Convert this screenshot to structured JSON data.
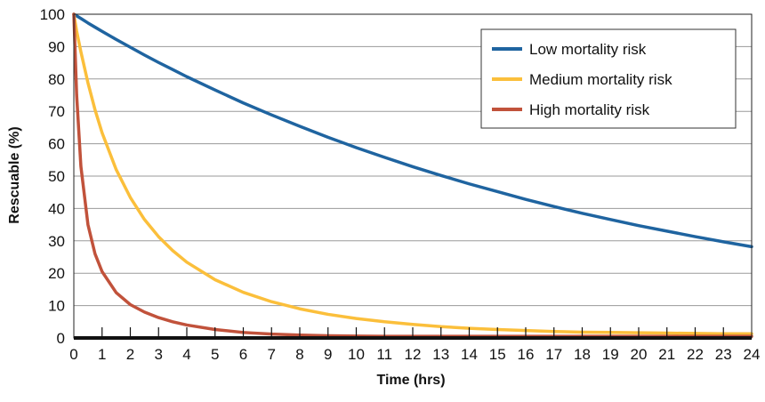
{
  "chart_data": {
    "type": "line",
    "title": "",
    "xlabel": "Time (hrs)",
    "ylabel": "Rescuable (%)",
    "xlim": [
      0,
      24
    ],
    "ylim": [
      0,
      100
    ],
    "x_ticks": [
      0,
      1,
      2,
      3,
      4,
      5,
      6,
      7,
      8,
      9,
      10,
      11,
      12,
      13,
      14,
      15,
      16,
      17,
      18,
      19,
      20,
      21,
      22,
      23,
      24
    ],
    "y_ticks": [
      0,
      10,
      20,
      30,
      40,
      50,
      60,
      70,
      80,
      90,
      100
    ],
    "grid": "horizontal",
    "legend_position": "top-right",
    "x": [
      0,
      0.1,
      0.25,
      0.5,
      0.75,
      1,
      1.5,
      2,
      2.5,
      3,
      3.5,
      4,
      5,
      6,
      7,
      8,
      9,
      10,
      11,
      12,
      13,
      14,
      15,
      16,
      17,
      18,
      19,
      20,
      21,
      22,
      23,
      24
    ],
    "series": [
      {
        "name": "Low mortality risk",
        "color": "#1f64a0",
        "values": [
          100,
          99.5,
          98.7,
          97.3,
          96.0,
          94.7,
          92.2,
          89.8,
          87.4,
          85.1,
          82.9,
          80.7,
          76.6,
          72.6,
          68.9,
          65.4,
          62.0,
          58.8,
          55.8,
          52.9,
          50.2,
          47.6,
          45.2,
          42.8,
          40.6,
          38.5,
          36.6,
          34.7,
          33.0,
          31.3,
          29.7,
          28.2
        ]
      },
      {
        "name": "Medium mortality risk",
        "color": "#fbbf3b",
        "values": [
          100,
          94.8,
          88.4,
          78.8,
          70.5,
          63.4,
          52.0,
          43.4,
          36.6,
          31.3,
          27.0,
          23.4,
          18.0,
          14.1,
          11.2,
          9.0,
          7.3,
          6.0,
          5.0,
          4.2,
          3.5,
          3.0,
          2.6,
          2.3,
          2.0,
          1.8,
          1.7,
          1.6,
          1.5,
          1.4,
          1.3,
          1.3
        ]
      },
      {
        "name": "High mortality risk",
        "color": "#c1523b",
        "values": [
          100,
          75.0,
          53.0,
          35.0,
          26.0,
          20.5,
          14.0,
          10.3,
          8.0,
          6.3,
          5.0,
          4.0,
          2.6,
          1.7,
          1.2,
          0.9,
          0.7,
          0.6,
          0.5,
          0.5,
          0.5,
          0.5,
          0.5,
          0.5,
          0.5,
          0.5,
          0.5,
          0.5,
          0.5,
          0.5,
          0.5,
          0.5
        ]
      }
    ]
  }
}
